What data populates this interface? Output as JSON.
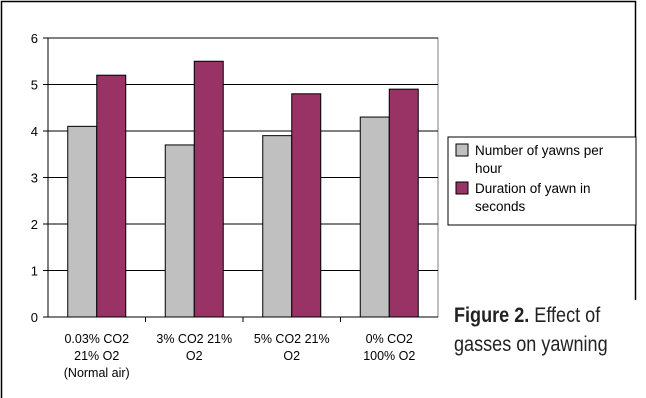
{
  "chart_data": {
    "type": "bar",
    "title": "",
    "xlabel": "",
    "ylabel": "",
    "ylim": [
      0,
      6
    ],
    "yticks": [
      "0",
      "1",
      "2",
      "3",
      "4",
      "5",
      "6"
    ],
    "grid": true,
    "legend_position": "right",
    "categories": [
      [
        "0.03% CO2",
        "21% O2",
        "(Normal air)"
      ],
      [
        "3% CO2 21%",
        "O2"
      ],
      [
        "5% CO2 21%",
        "O2"
      ],
      [
        "0% CO2",
        "100% O2"
      ]
    ],
    "series": [
      {
        "name": "Number of yawns per hour",
        "legend_lines": [
          "Number of yawns per",
          "hour"
        ],
        "color": "#c0c0c0",
        "values": [
          4.1,
          3.7,
          3.9,
          4.3
        ]
      },
      {
        "name": "Duration of yawn in seconds",
        "legend_lines": [
          "Duration of yawn in",
          "seconds"
        ],
        "color": "#993366",
        "values": [
          5.2,
          5.5,
          4.8,
          4.9
        ]
      }
    ]
  },
  "caption": {
    "label": "Figure 2.",
    "line1_rest": " Effect of",
    "line2": "gasses on yawning"
  }
}
